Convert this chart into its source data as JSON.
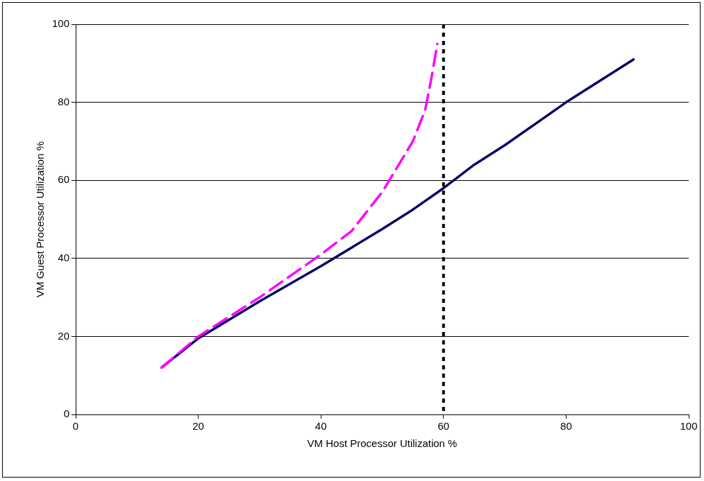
{
  "chart_data": {
    "type": "line",
    "xlabel": "VM Host Processor Utilization %",
    "ylabel": "VM Guest Processor Utilization %",
    "xlim": [
      0,
      100
    ],
    "xticks": [
      0,
      20,
      40,
      60,
      80,
      100
    ],
    "ylim": [
      0,
      100
    ],
    "yticks": [
      0,
      20,
      40,
      60,
      80,
      100
    ],
    "grid": "y",
    "marker": "none",
    "series": [
      {
        "color": "#000066",
        "line_style": "solid",
        "x": [
          14,
          20,
          30,
          40,
          50,
          55,
          60,
          65,
          70,
          80,
          91
        ],
        "values": [
          12,
          19.5,
          29,
          38,
          47.5,
          52.5,
          58,
          64,
          69,
          80,
          91
        ]
      },
      {
        "color": "#ff00ff",
        "line_style": "dashed",
        "x": [
          14,
          20,
          30,
          40,
          45,
          50,
          55,
          57,
          58,
          59
        ],
        "values": [
          12,
          20,
          30,
          41,
          47,
          57,
          70,
          78,
          86,
          95
        ]
      }
    ],
    "ref_lines": [
      {
        "axis": "x",
        "value": 60,
        "color": "#000000",
        "line_style": "dotted"
      }
    ]
  }
}
